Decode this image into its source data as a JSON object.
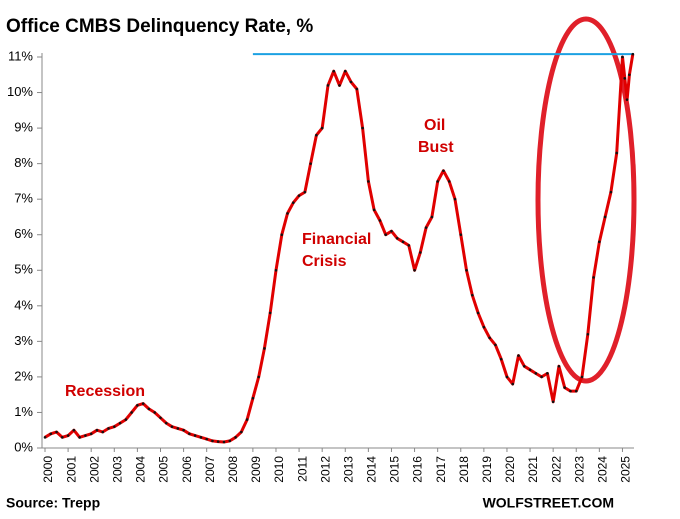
{
  "chart_data": {
    "type": "line",
    "title": "Office CMBS Delinquency Rate, %",
    "source": "Source: Trepp",
    "brand": "WOLFSTREET.COM",
    "annotations": [
      {
        "lines": [
          "Recession"
        ]
      },
      {
        "lines": [
          "Financial",
          "Crisis"
        ]
      },
      {
        "lines": [
          "Oil",
          "Bust"
        ]
      }
    ],
    "x": [
      2000,
      2000.25,
      2000.5,
      2000.75,
      2001,
      2001.25,
      2001.5,
      2001.75,
      2002,
      2002.25,
      2002.5,
      2002.75,
      2003,
      2003.25,
      2003.5,
      2003.75,
      2004,
      2004.25,
      2004.5,
      2004.75,
      2005,
      2005.25,
      2005.5,
      2005.75,
      2006,
      2006.25,
      2006.5,
      2006.75,
      2007,
      2007.25,
      2007.5,
      2007.75,
      2008,
      2008.25,
      2008.5,
      2008.75,
      2009,
      2009.25,
      2009.5,
      2009.75,
      2010,
      2010.25,
      2010.5,
      2010.75,
      2011,
      2011.25,
      2011.5,
      2011.75,
      2012,
      2012.25,
      2012.5,
      2012.75,
      2013,
      2013.25,
      2013.5,
      2013.75,
      2014,
      2014.25,
      2014.5,
      2014.75,
      2015,
      2015.25,
      2015.5,
      2015.75,
      2016,
      2016.25,
      2016.5,
      2016.75,
      2017,
      2017.25,
      2017.5,
      2017.75,
      2018,
      2018.25,
      2018.5,
      2018.75,
      2019,
      2019.25,
      2019.5,
      2019.75,
      2020,
      2020.25,
      2020.5,
      2020.75,
      2021,
      2021.25,
      2021.5,
      2021.75,
      2022,
      2022.25,
      2022.5,
      2022.75,
      2023,
      2023.25,
      2023.5,
      2023.75,
      2024,
      2024.25,
      2024.5,
      2024.75,
      2025,
      2025.1,
      2025.2,
      2025.3,
      2025.45
    ],
    "series": [
      {
        "name": "Office CMBS Delinquency Rate",
        "color": "#e00000",
        "values": [
          0.3,
          0.4,
          0.45,
          0.3,
          0.35,
          0.5,
          0.3,
          0.35,
          0.4,
          0.5,
          0.45,
          0.55,
          0.6,
          0.7,
          0.8,
          1.0,
          1.2,
          1.25,
          1.1,
          1.0,
          0.85,
          0.7,
          0.6,
          0.55,
          0.5,
          0.4,
          0.35,
          0.3,
          0.25,
          0.2,
          0.18,
          0.17,
          0.2,
          0.3,
          0.45,
          0.8,
          1.4,
          2.0,
          2.8,
          3.8,
          5.0,
          6.0,
          6.6,
          6.9,
          7.1,
          7.2,
          8.0,
          8.8,
          9.0,
          10.2,
          10.6,
          10.2,
          10.6,
          10.3,
          10.1,
          9.0,
          7.5,
          6.7,
          6.4,
          6.0,
          6.1,
          5.9,
          5.8,
          5.7,
          5.0,
          5.5,
          6.2,
          6.5,
          7.5,
          7.8,
          7.5,
          7.0,
          6.0,
          5.0,
          4.3,
          3.8,
          3.4,
          3.1,
          2.9,
          2.5,
          2.0,
          1.8,
          2.6,
          2.3,
          2.2,
          2.1,
          2.0,
          2.1,
          1.3,
          2.3,
          1.7,
          1.6,
          1.6,
          2.0,
          3.2,
          4.8,
          5.8,
          6.5,
          7.2,
          8.3,
          11.0,
          10.4,
          9.8,
          10.5,
          11.08
        ]
      }
    ],
    "reference_line": {
      "value": 11.08,
      "x_start": 2009,
      "color": "#1ba1e2"
    },
    "xlim": [
      2000,
      2025.5
    ],
    "xticks": [
      2000,
      2001,
      2002,
      2003,
      2004,
      2005,
      2006,
      2007,
      2008,
      2009,
      2010,
      2011,
      2012,
      2013,
      2014,
      2015,
      2016,
      2017,
      2018,
      2019,
      2020,
      2021,
      2022,
      2023,
      2024,
      2025
    ],
    "ylim": [
      0,
      11
    ],
    "yticks": [
      {
        "value": 0,
        "label": "0%"
      },
      {
        "value": 1,
        "label": "1%"
      },
      {
        "value": 2,
        "label": "2%"
      },
      {
        "value": 3,
        "label": "3%"
      },
      {
        "value": 4,
        "label": "4%"
      },
      {
        "value": 5,
        "label": "5%"
      },
      {
        "value": 6,
        "label": "6%"
      },
      {
        "value": 7,
        "label": "7%"
      },
      {
        "value": 8,
        "label": "8%"
      },
      {
        "value": 9,
        "label": "9%"
      },
      {
        "value": 10,
        "label": "10%"
      },
      {
        "value": 11,
        "label": "11%"
      }
    ],
    "grid": false
  }
}
